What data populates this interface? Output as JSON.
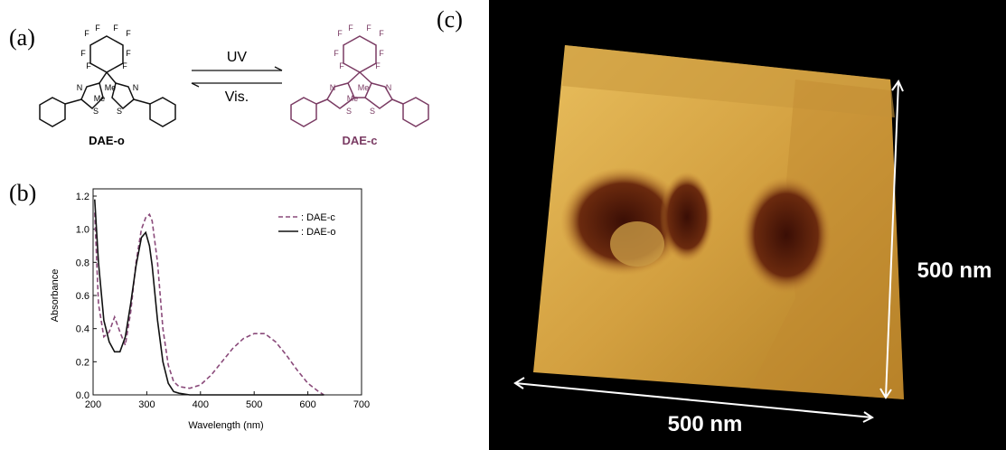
{
  "panels": {
    "a": {
      "label": "(a)",
      "forward": "UV",
      "backward": "Vis.",
      "open_name": "DAE-o",
      "closed_name": "DAE-c",
      "open_atoms": [
        "F",
        "F",
        "F",
        "F",
        "F",
        "F",
        "F",
        "F",
        "N",
        "S",
        "Me",
        "Me",
        "S",
        "N"
      ],
      "closed_atoms": [
        "F",
        "F",
        "F",
        "F",
        "F",
        "F",
        "F",
        "F",
        "N",
        "S",
        "Me",
        "Me",
        "S",
        "N"
      ]
    },
    "c": {
      "label": "(c)",
      "width": "500 nm",
      "height": "500 nm"
    }
  },
  "chart_data": {
    "type": "line",
    "panel_label": "(b)",
    "x_label": "Wavelength (nm)",
    "y_label": "Absorbance",
    "x": [
      203,
      210,
      220,
      230,
      240,
      250,
      260,
      270,
      280,
      290,
      298,
      305,
      310,
      320,
      330,
      340,
      350,
      360,
      380,
      400,
      420,
      440,
      460,
      480,
      500,
      520,
      540,
      560,
      580,
      600,
      620,
      630
    ],
    "series": [
      {
        "name": ": DAE-c",
        "color": "#8a4a7a",
        "dash": true,
        "values": [
          1.1,
          0.55,
          0.35,
          0.38,
          0.47,
          0.38,
          0.3,
          0.5,
          0.8,
          1.0,
          1.07,
          1.09,
          1.05,
          0.8,
          0.4,
          0.18,
          0.08,
          0.05,
          0.04,
          0.06,
          0.12,
          0.2,
          0.28,
          0.34,
          0.37,
          0.37,
          0.32,
          0.24,
          0.15,
          0.07,
          0.02,
          0
        ]
      },
      {
        "name": ": DAE-o",
        "color": "#111111",
        "dash": false,
        "values": [
          1.18,
          0.8,
          0.45,
          0.32,
          0.26,
          0.26,
          0.35,
          0.55,
          0.78,
          0.95,
          0.98,
          0.9,
          0.78,
          0.45,
          0.2,
          0.07,
          0.02,
          0.01,
          0,
          0,
          0,
          0,
          0,
          0,
          0,
          0,
          0,
          0,
          0,
          0,
          0,
          0
        ]
      }
    ],
    "xlim": [
      200,
      700
    ],
    "xticks": [
      200,
      300,
      400,
      500,
      600,
      700
    ],
    "ylim": [
      0,
      1.2
    ],
    "yticks": [
      {
        "value": 0,
        "label": "0.0"
      },
      0.2,
      0.4,
      0.6,
      0.8,
      {
        "value": 1,
        "label": "1.0"
      },
      1.2
    ]
  }
}
